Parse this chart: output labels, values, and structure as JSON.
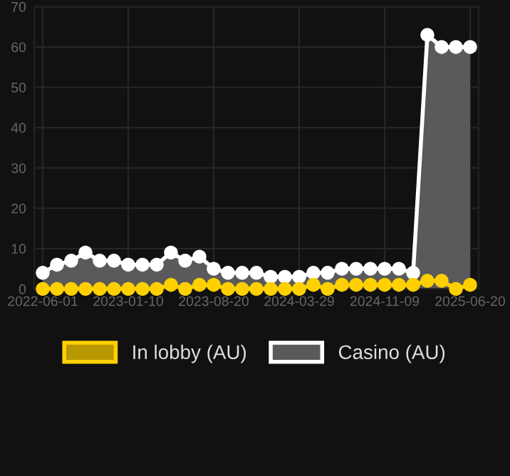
{
  "chart_data": {
    "type": "area",
    "categories": [
      "2022-06-01",
      null,
      null,
      null,
      null,
      null,
      "2023-01-10",
      null,
      null,
      null,
      null,
      null,
      "2023-08-20",
      null,
      null,
      null,
      null,
      null,
      "2024-03-29",
      null,
      null,
      null,
      null,
      null,
      "2024-11-09",
      null,
      null,
      null,
      null,
      null,
      "2025-06-20"
    ],
    "series": [
      {
        "name": "In lobby (AU)",
        "color": "#ffd000",
        "values": [
          0,
          0,
          0,
          0,
          0,
          0,
          0,
          0,
          0,
          1,
          0,
          1,
          1,
          0,
          0,
          0,
          0,
          0,
          0,
          1,
          0,
          1,
          1,
          1,
          1,
          1,
          1,
          2,
          2,
          0,
          1
        ]
      },
      {
        "name": "Casino (AU)",
        "color": "#ffffff",
        "values": [
          4,
          6,
          7,
          9,
          7,
          7,
          6,
          6,
          6,
          9,
          7,
          8,
          5,
          4,
          4,
          4,
          3,
          3,
          3,
          4,
          4,
          5,
          5,
          5,
          5,
          5,
          4,
          63,
          60,
          60,
          60
        ]
      }
    ],
    "ylim": [
      0,
      70
    ],
    "yticks": [
      0,
      10,
      20,
      30,
      40,
      50,
      60,
      70
    ],
    "grid": true,
    "legend": "bottom",
    "marker": "circle",
    "line_style": "solid"
  }
}
